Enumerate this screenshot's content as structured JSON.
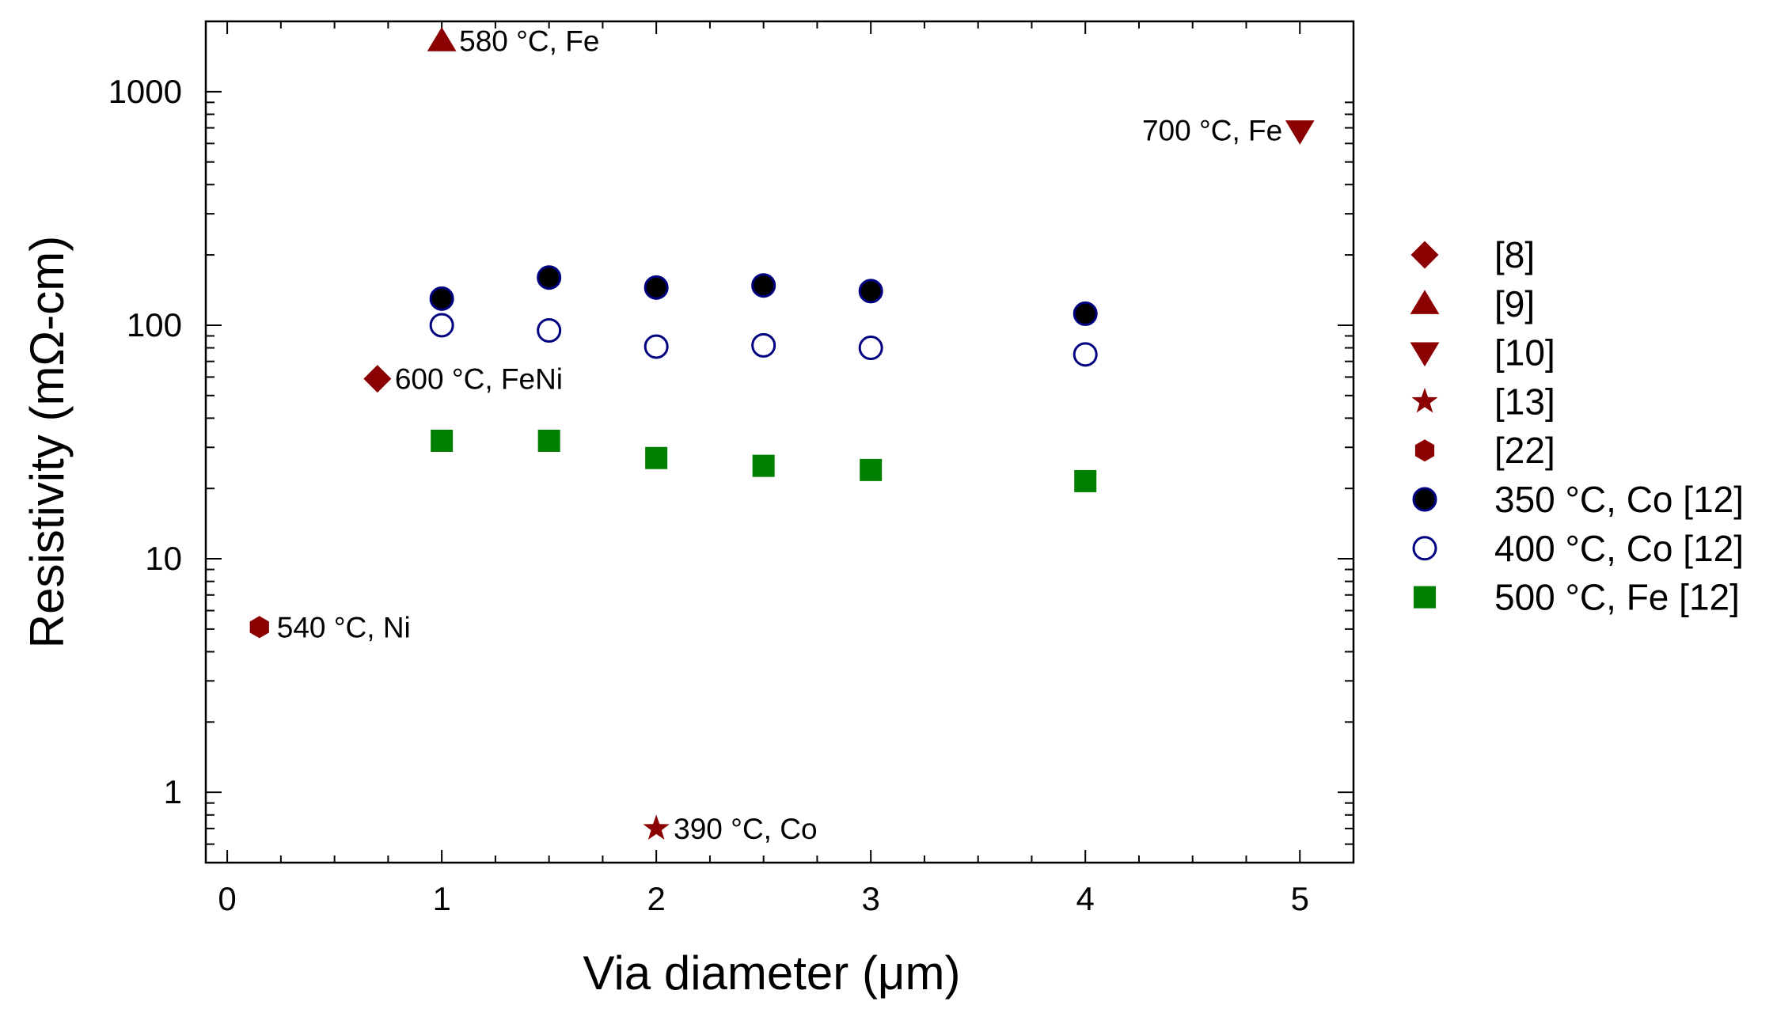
{
  "chart_data": {
    "type": "scatter",
    "xlabel": "Via diameter (μm)",
    "ylabel": "Resistivity (mΩ-cm)",
    "xlim": [
      -0.1,
      5.25
    ],
    "ylim": [
      0.5,
      2000
    ],
    "yscale": "log",
    "x_ticks": [
      0,
      1,
      2,
      3,
      4,
      5
    ],
    "y_ticks": [
      1,
      10,
      100,
      1000
    ],
    "legend_position": "right",
    "grid": false,
    "colors": {
      "dark_red": "#8b0000",
      "navy": "#000080",
      "green": "#008000",
      "black": "#000000"
    },
    "series": [
      {
        "name": "[8]",
        "marker": "diamond",
        "points": [
          {
            "x": 0.7,
            "y": 59,
            "label": "600 °C, FeNi"
          }
        ]
      },
      {
        "name": "[9]",
        "marker": "triangle-up",
        "points": [
          {
            "x": 1.0,
            "y": 1650,
            "label": "580 °C, Fe"
          }
        ]
      },
      {
        "name": "[10]",
        "marker": "triangle-down",
        "points": [
          {
            "x": 5.0,
            "y": 680,
            "label": "700 °C, Fe"
          }
        ]
      },
      {
        "name": "[13]",
        "marker": "star",
        "points": [
          {
            "x": 2.0,
            "y": 0.7,
            "label": "390 °C, Co"
          }
        ]
      },
      {
        "name": "[22]",
        "marker": "hexagon",
        "points": [
          {
            "x": 0.15,
            "y": 5.1,
            "label": "540 °C, Ni"
          }
        ]
      },
      {
        "name": "350 °C, Co [12]",
        "marker": "filled-circle",
        "points": [
          {
            "x": 1.0,
            "y": 130
          },
          {
            "x": 1.5,
            "y": 160
          },
          {
            "x": 2.0,
            "y": 145
          },
          {
            "x": 2.5,
            "y": 148
          },
          {
            "x": 3.0,
            "y": 140
          },
          {
            "x": 4.0,
            "y": 112
          }
        ]
      },
      {
        "name": "400 °C, Co [12]",
        "marker": "open-circle",
        "points": [
          {
            "x": 1.0,
            "y": 100
          },
          {
            "x": 1.5,
            "y": 95
          },
          {
            "x": 2.0,
            "y": 81
          },
          {
            "x": 2.5,
            "y": 82
          },
          {
            "x": 3.0,
            "y": 80
          },
          {
            "x": 4.0,
            "y": 75
          }
        ]
      },
      {
        "name": "500 °C, Fe [12]",
        "marker": "square",
        "points": [
          {
            "x": 1.0,
            "y": 32
          },
          {
            "x": 1.5,
            "y": 32
          },
          {
            "x": 2.0,
            "y": 27
          },
          {
            "x": 2.5,
            "y": 25
          },
          {
            "x": 3.0,
            "y": 24
          },
          {
            "x": 4.0,
            "y": 21.5
          }
        ]
      }
    ]
  }
}
